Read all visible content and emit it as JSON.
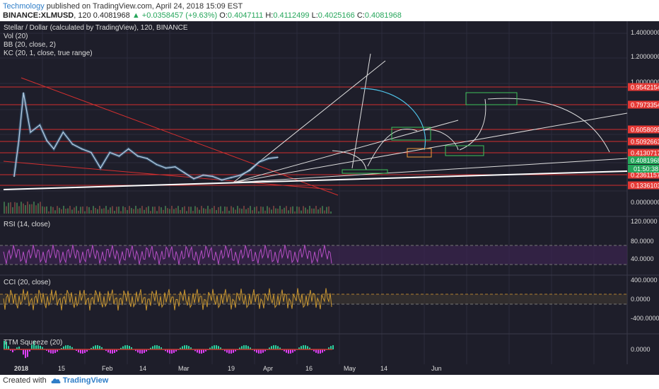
{
  "header": {
    "author": "Techmology",
    "published": "published on TradingView.com, April 24, 2018 15:09 EST",
    "symbol": "BINANCE:XLMUSD",
    "interval": "120",
    "last": "0.4081968",
    "change_arrow": "▲",
    "change": "+0.0358457 (+9.63%)",
    "open_label": "O:",
    "open": "0.4047111",
    "high_label": "H:",
    "high": "0.4112499",
    "low_label": "L:",
    "low": "0.4025166",
    "close_label": "C:",
    "close": "0.4081968"
  },
  "main_pane": {
    "title": "Stellar / Dollar (calculated by TradingView), 120, BINANCE",
    "studies": [
      "Vol (20)",
      "BB (20, close, 2)",
      "KC (20, 1, close, true range)"
    ],
    "price_ticks": [
      "1.4000000",
      "1.2000000",
      "1.0000000",
      "0.0000000"
    ],
    "level_labels": [
      {
        "value": 0.9542154,
        "text": "0.9542154"
      },
      {
        "value": 0.7973354,
        "text": "0.7973354"
      },
      {
        "value": 0.6058095,
        "text": "0.6058095"
      },
      {
        "value": 0.5092663,
        "text": "0.5092663"
      },
      {
        "value": 0.4130717,
        "text": "0.4130717"
      },
      {
        "value": 0.2361157,
        "text": "0.2361157"
      },
      {
        "value": 0.1336103,
        "text": "0.1336103"
      }
    ],
    "current_price": "0.4081968",
    "countdown": "01:50:38"
  },
  "rsi_pane": {
    "title": "RSI (14, close)",
    "ticks": [
      "120.0000",
      "80.0000",
      "40.0000"
    ]
  },
  "cci_pane": {
    "title": "CCI (20, close)",
    "ticks": [
      "400.0000",
      "0.0000",
      "-400.0000"
    ]
  },
  "ttm_pane": {
    "title": "TTM Squeeze (20)",
    "ticks": [
      "0.0000"
    ]
  },
  "x_axis": {
    "labels": [
      "2018",
      "15",
      "Feb",
      "14",
      "Mar",
      "19",
      "Apr",
      "16",
      "May",
      "14",
      "Jun"
    ]
  },
  "footer": {
    "created_with": "Created with",
    "brand": "TradingView"
  },
  "colors": {
    "background": "#1e1e2a",
    "level_line": "#d32f2f",
    "label_bg": "#e53935",
    "up": "#26a65b",
    "price_line": "#bcd1e6",
    "rsi_line": "#b54fc4",
    "cci_line": "#c89632",
    "curve_arrow": "#4fc3e8"
  },
  "chart_data": {
    "type": "line",
    "series": [
      {
        "name": "BINANCE:XLMUSD",
        "x": [
          "2018-01-01",
          "2018-01-03",
          "2018-01-05",
          "2018-01-08",
          "2018-01-12",
          "2018-01-15",
          "2018-01-18",
          "2018-01-22",
          "2018-01-26",
          "2018-01-30",
          "2018-02-03",
          "2018-02-07",
          "2018-02-11",
          "2018-02-15",
          "2018-02-19",
          "2018-02-23",
          "2018-02-27",
          "2018-03-03",
          "2018-03-07",
          "2018-03-11",
          "2018-03-15",
          "2018-03-19",
          "2018-03-23",
          "2018-03-27",
          "2018-03-31",
          "2018-04-04",
          "2018-04-08",
          "2018-04-12",
          "2018-04-16",
          "2018-04-20",
          "2018-04-24"
        ],
        "values": [
          0.25,
          0.55,
          0.95,
          0.62,
          0.68,
          0.55,
          0.48,
          0.62,
          0.52,
          0.48,
          0.45,
          0.32,
          0.45,
          0.42,
          0.48,
          0.42,
          0.4,
          0.35,
          0.32,
          0.33,
          0.28,
          0.23,
          0.26,
          0.25,
          0.22,
          0.24,
          0.26,
          0.3,
          0.37,
          0.4,
          0.41
        ]
      }
    ],
    "ylim": [
      -0.05,
      1.55
    ],
    "horizontal_levels": [
      0.9542154,
      0.7973354,
      0.6058095,
      0.5092663,
      0.4130717,
      0.2361157,
      0.1336103
    ],
    "grid": true
  }
}
